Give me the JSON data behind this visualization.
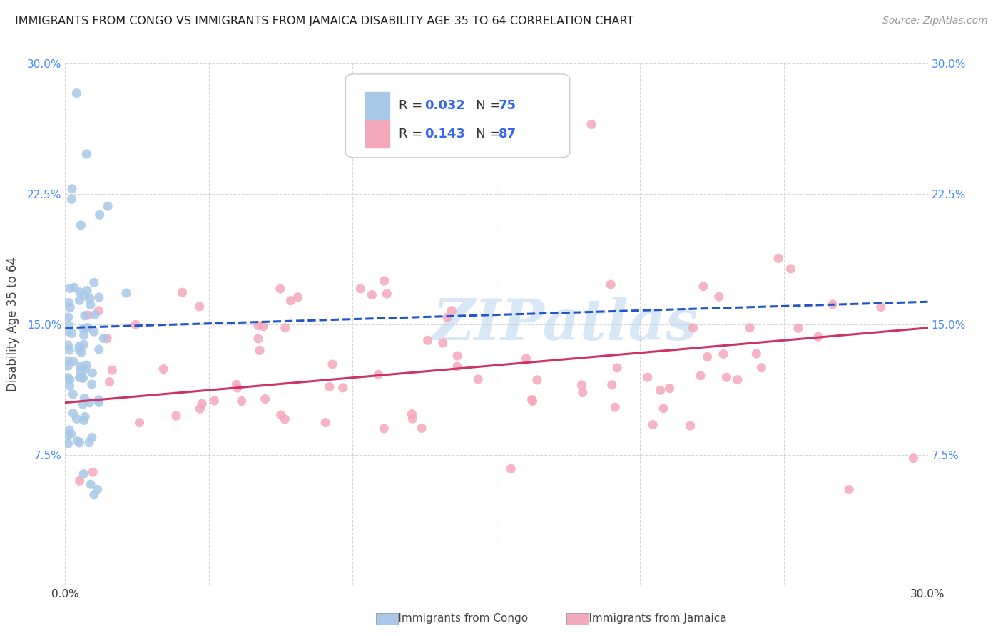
{
  "title": "IMMIGRANTS FROM CONGO VS IMMIGRANTS FROM JAMAICA DISABILITY AGE 35 TO 64 CORRELATION CHART",
  "source": "Source: ZipAtlas.com",
  "ylabel": "Disability Age 35 to 64",
  "xlim": [
    0.0,
    0.3
  ],
  "ylim": [
    0.0,
    0.3
  ],
  "congo_color": "#a8c8e8",
  "jamaica_color": "#f4a8bc",
  "congo_line_color": "#2255cc",
  "jamaica_line_color": "#cc3366",
  "watermark_text": "ZIPatlas",
  "legend_R_congo": "0.032",
  "legend_N_congo": "75",
  "legend_R_jamaica": "0.143",
  "legend_N_jamaica": "87",
  "congo_trend_x0": 0.0,
  "congo_trend_y0": 0.148,
  "congo_trend_x1": 0.3,
  "congo_trend_y1": 0.163,
  "jamaica_trend_x0": 0.0,
  "jamaica_trend_y0": 0.105,
  "jamaica_trend_x1": 0.3,
  "jamaica_trend_y1": 0.148
}
